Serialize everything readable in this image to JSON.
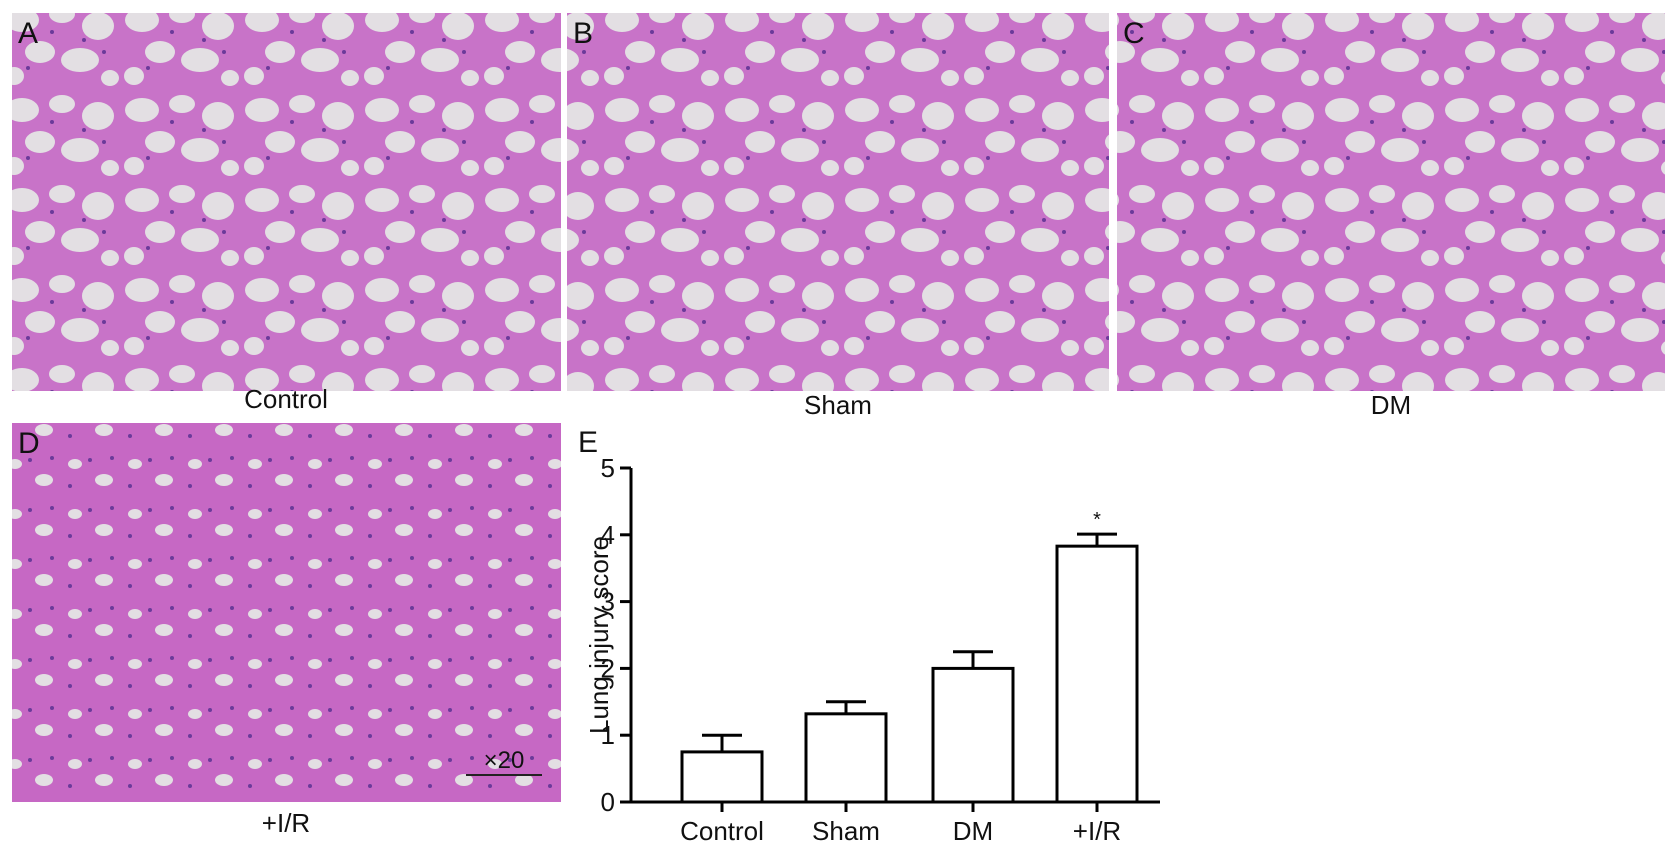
{
  "panels": [
    {
      "letter": "A",
      "caption": "Control"
    },
    {
      "letter": "B",
      "caption": "Sham"
    },
    {
      "letter": "C",
      "caption": "DM"
    },
    {
      "letter": "D",
      "caption": "+I/R"
    }
  ],
  "scale_label": "×20",
  "chart_data": {
    "type": "bar",
    "panel_letter": "E",
    "y_label": "Lung injury score",
    "categories": [
      "Control",
      "Sham",
      "DM",
      "+I/R"
    ],
    "values": [
      0.75,
      1.32,
      2.0,
      3.83
    ],
    "errors": [
      0.25,
      0.18,
      0.25,
      0.18
    ],
    "significance": [
      null,
      null,
      null,
      "*"
    ],
    "color": "#ffffff",
    "ylim": [
      0,
      5
    ],
    "yticks": [
      0,
      1,
      2,
      3,
      4,
      5
    ]
  }
}
